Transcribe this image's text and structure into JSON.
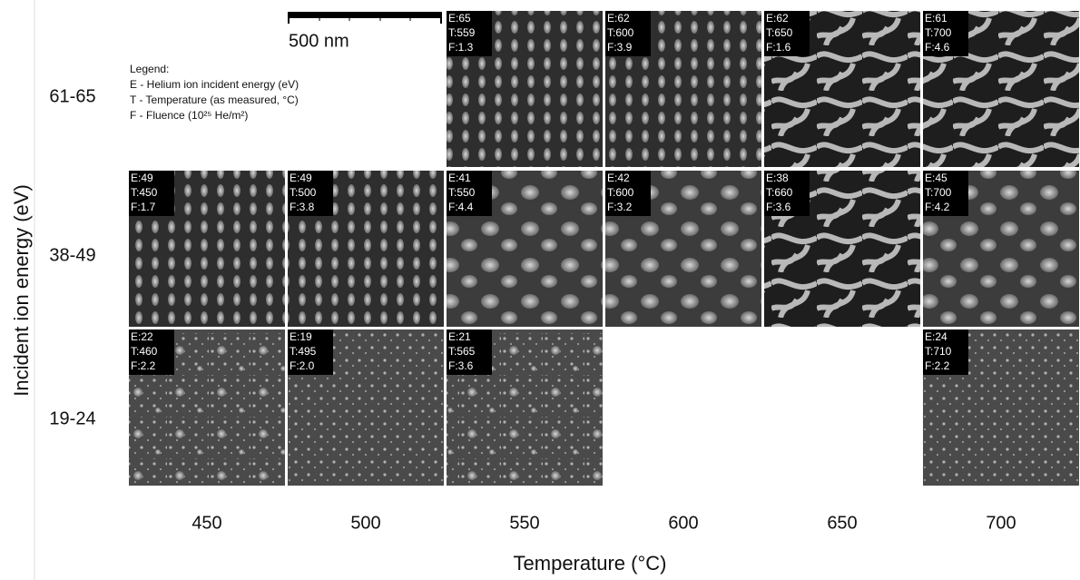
{
  "figure": {
    "y_axis_title": "Incident ion energy (eV)",
    "x_axis_title": "Temperature (°C)",
    "scale_bar": "500 nm",
    "legend": {
      "title": "Legend:",
      "items": [
        "E - Helium ion incident energy (eV)",
        "T - Temperature (as measured, °C)",
        "F - Fluence (10²⁵ He/m²)"
      ]
    },
    "columns": [
      "450",
      "500",
      "550",
      "600",
      "650",
      "700"
    ],
    "rows": [
      {
        "label": "61-65",
        "cells": [
          null,
          null,
          [
            "E:65",
            "T:559",
            "F:1.3"
          ],
          [
            "E:62",
            "T:600",
            "F:3.9"
          ],
          [
            "E:62",
            "T:650",
            "F:1.6"
          ],
          [
            "E:61",
            "T:700",
            "F:4.6"
          ]
        ]
      },
      {
        "label": "38-49",
        "cells": [
          [
            "E:49",
            "T:450",
            "F:1.7"
          ],
          [
            "E:49",
            "T:500",
            "F:3.8"
          ],
          [
            "E:41",
            "T:550",
            "F:4.4"
          ],
          [
            "E:42",
            "T:600",
            "F:3.2"
          ],
          [
            "E:38",
            "T:660",
            "F:3.6"
          ],
          [
            "E:45",
            "T:700",
            "F:4.2"
          ]
        ]
      },
      {
        "label": "19-24",
        "cells": [
          [
            "E:22",
            "T:460",
            "F:2.2"
          ],
          [
            "E:19",
            "T:495",
            "F:2.0"
          ],
          [
            "E:21",
            "T:565",
            "F:3.6"
          ],
          null,
          null,
          [
            "E:24",
            "T:710",
            "F:2.2"
          ]
        ]
      }
    ]
  }
}
